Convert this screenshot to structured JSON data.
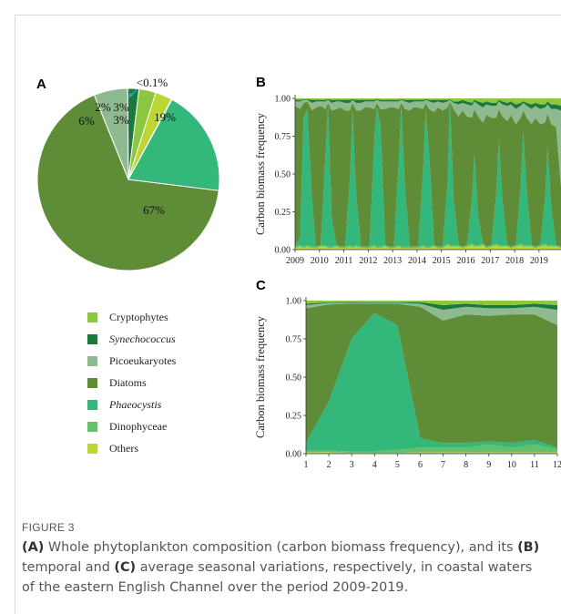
{
  "panels": {
    "a": "A",
    "b": "B",
    "c": "C"
  },
  "colors": {
    "Cryptophytes": "#8dc63f",
    "Synechococcus": "#1a7a3c",
    "Picoeukaryotes": "#8fb98e",
    "Diatoms": "#5f8c37",
    "Phaeocystis": "#33b77a",
    "Dinophyceae": "#64c06a",
    "Others": "#bcd633"
  },
  "legend": [
    {
      "name": "Cryptophytes",
      "italic": false
    },
    {
      "name": "Synechococcus",
      "italic": true
    },
    {
      "name": "Picoeukaryotes",
      "italic": false
    },
    {
      "name": "Diatoms",
      "italic": false
    },
    {
      "name": "Phaeocystis",
      "italic": true
    },
    {
      "name": "Dinophyceae",
      "italic": false
    },
    {
      "name": "Others",
      "italic": false
    }
  ],
  "chart_data": [
    {
      "panel": "A",
      "type": "pie",
      "slices": [
        {
          "name": "Diatoms",
          "value": 67,
          "label": "67%"
        },
        {
          "name": "Picoeukaryotes",
          "value": 6,
          "label": "6%"
        },
        {
          "name": "Synechococcus",
          "value": 2,
          "label": "2%"
        },
        {
          "name": "Cryptophytes",
          "value": 3,
          "label": "3%"
        },
        {
          "name": "Others",
          "value": 3,
          "label": "3%"
        },
        {
          "name": "Dinophyceae",
          "value": 0.1,
          "label": "<0.1%"
        },
        {
          "name": "Phaeocystis",
          "value": 19,
          "label": "19%"
        }
      ]
    },
    {
      "panel": "B",
      "type": "area",
      "ylabel": "Carbon biomass frequency",
      "xlabel": "",
      "ylim": [
        0,
        1
      ],
      "yticks": [
        "0.00",
        "0.25",
        "0.50",
        "0.75",
        "1.00"
      ],
      "xticks": [
        "2009",
        "2010",
        "2011",
        "2012",
        "2013",
        "2014",
        "2015",
        "2016",
        "2017",
        "2018",
        "2019"
      ],
      "x": [
        2009,
        2009.2,
        2009.35,
        2009.5,
        2009.7,
        2009.85,
        2010.05,
        2010.25,
        2010.35,
        2010.5,
        2010.7,
        2010.85,
        2011.05,
        2011.25,
        2011.35,
        2011.5,
        2011.7,
        2011.85,
        2012.05,
        2012.25,
        2012.35,
        2012.5,
        2012.7,
        2012.85,
        2013.05,
        2013.25,
        2013.35,
        2013.5,
        2013.7,
        2013.85,
        2014.05,
        2014.25,
        2014.35,
        2014.5,
        2014.7,
        2014.85,
        2015.05,
        2015.25,
        2015.35,
        2015.5,
        2015.7,
        2015.85,
        2016.05,
        2016.25,
        2016.35,
        2016.5,
        2016.7,
        2016.85,
        2017.05,
        2017.25,
        2017.35,
        2017.5,
        2017.7,
        2017.85,
        2018.05,
        2018.25,
        2018.35,
        2018.5,
        2018.7,
        2018.85,
        2019.05,
        2019.25,
        2019.35,
        2019.5,
        2019.7,
        2019.9
      ],
      "series": [
        {
          "name": "Others",
          "values": [
            0.01,
            0.02,
            0.01,
            0.02,
            0.01,
            0.01,
            0.02,
            0.02,
            0.01,
            0.01,
            0.02,
            0.01,
            0.01,
            0.02,
            0.01,
            0.02,
            0.01,
            0.01,
            0.01,
            0.02,
            0.01,
            0.01,
            0.02,
            0.01,
            0.01,
            0.02,
            0.01,
            0.01,
            0.01,
            0.01,
            0.01,
            0.02,
            0.01,
            0.01,
            0.02,
            0.01,
            0.01,
            0.03,
            0.02,
            0.02,
            0.02,
            0.01,
            0.02,
            0.03,
            0.02,
            0.02,
            0.03,
            0.01,
            0.02,
            0.03,
            0.02,
            0.02,
            0.02,
            0.01,
            0.02,
            0.03,
            0.02,
            0.02,
            0.02,
            0.01,
            0.02,
            0.03,
            0.02,
            0.02,
            0.02,
            0.01
          ]
        },
        {
          "name": "Dinophyceae",
          "values": [
            0.01,
            0.01,
            0.01,
            0.01,
            0.01,
            0.01,
            0.01,
            0.01,
            0.01,
            0.01,
            0.01,
            0.01,
            0.01,
            0.01,
            0.01,
            0.01,
            0.01,
            0.01,
            0.01,
            0.01,
            0.01,
            0.01,
            0.01,
            0.01,
            0.01,
            0.01,
            0.01,
            0.01,
            0.01,
            0.01,
            0.01,
            0.01,
            0.01,
            0.01,
            0.01,
            0.01,
            0.01,
            0.01,
            0.01,
            0.01,
            0.01,
            0.01,
            0.01,
            0.01,
            0.01,
            0.01,
            0.01,
            0.01,
            0.01,
            0.01,
            0.01,
            0.01,
            0.01,
            0.01,
            0.01,
            0.01,
            0.01,
            0.01,
            0.01,
            0.01,
            0.01,
            0.01,
            0.01,
            0.01,
            0.01,
            0.01
          ]
        },
        {
          "name": "Phaeocystis",
          "values": [
            0.0,
            0.05,
            0.85,
            0.9,
            0.3,
            0.0,
            0.0,
            0.6,
            0.93,
            0.2,
            0.0,
            0.0,
            0.0,
            0.45,
            0.9,
            0.35,
            0.0,
            0.0,
            0.0,
            0.7,
            0.92,
            0.8,
            0.0,
            0.0,
            0.0,
            0.55,
            0.93,
            0.4,
            0.0,
            0.0,
            0.0,
            0.5,
            0.9,
            0.6,
            0.0,
            0.0,
            0.0,
            0.4,
            0.95,
            0.3,
            0.0,
            0.0,
            0.0,
            0.3,
            0.6,
            0.2,
            0.0,
            0.0,
            0.0,
            0.35,
            0.7,
            0.3,
            0.0,
            0.0,
            0.0,
            0.4,
            0.75,
            0.35,
            0.0,
            0.0,
            0.0,
            0.3,
            0.65,
            0.25,
            0.0,
            0.0
          ]
        },
        {
          "name": "Diatoms",
          "values": [
            0.93,
            0.85,
            0.1,
            0.05,
            0.6,
            0.92,
            0.92,
            0.3,
            0.02,
            0.7,
            0.9,
            0.92,
            0.9,
            0.45,
            0.05,
            0.55,
            0.9,
            0.92,
            0.92,
            0.2,
            0.03,
            0.1,
            0.9,
            0.92,
            0.92,
            0.35,
            0.02,
            0.5,
            0.9,
            0.92,
            0.92,
            0.4,
            0.05,
            0.3,
            0.88,
            0.92,
            0.9,
            0.5,
            0.0,
            0.6,
            0.85,
            0.9,
            0.85,
            0.55,
            0.3,
            0.65,
            0.8,
            0.88,
            0.85,
            0.5,
            0.2,
            0.55,
            0.82,
            0.88,
            0.8,
            0.45,
            0.15,
            0.5,
            0.8,
            0.85,
            0.8,
            0.5,
            0.22,
            0.55,
            0.78,
            0.4
          ]
        },
        {
          "name": "Picoeukaryotes",
          "values": [
            0.03,
            0.05,
            0.02,
            0.01,
            0.05,
            0.04,
            0.03,
            0.05,
            0.02,
            0.05,
            0.05,
            0.04,
            0.05,
            0.05,
            0.02,
            0.05,
            0.05,
            0.04,
            0.04,
            0.05,
            0.02,
            0.05,
            0.05,
            0.04,
            0.04,
            0.05,
            0.02,
            0.05,
            0.05,
            0.04,
            0.04,
            0.05,
            0.02,
            0.05,
            0.06,
            0.04,
            0.05,
            0.04,
            0.01,
            0.04,
            0.08,
            0.05,
            0.08,
            0.08,
            0.05,
            0.08,
            0.1,
            0.07,
            0.08,
            0.08,
            0.05,
            0.08,
            0.1,
            0.07,
            0.1,
            0.08,
            0.05,
            0.08,
            0.1,
            0.08,
            0.1,
            0.1,
            0.06,
            0.1,
            0.12,
            0.5
          ]
        },
        {
          "name": "Synechococcus",
          "values": [
            0.01,
            0.01,
            0.005,
            0.005,
            0.02,
            0.01,
            0.01,
            0.01,
            0.005,
            0.02,
            0.01,
            0.01,
            0.02,
            0.02,
            0.005,
            0.02,
            0.02,
            0.01,
            0.01,
            0.01,
            0.005,
            0.01,
            0.01,
            0.01,
            0.01,
            0.01,
            0.005,
            0.01,
            0.02,
            0.01,
            0.01,
            0.01,
            0.005,
            0.01,
            0.02,
            0.01,
            0.02,
            0.01,
            0.005,
            0.01,
            0.02,
            0.02,
            0.02,
            0.02,
            0.01,
            0.02,
            0.03,
            0.02,
            0.02,
            0.02,
            0.01,
            0.02,
            0.02,
            0.02,
            0.03,
            0.02,
            0.01,
            0.02,
            0.03,
            0.02,
            0.03,
            0.02,
            0.02,
            0.03,
            0.03,
            0.03
          ]
        },
        {
          "name": "Cryptophytes",
          "values": [
            0.01,
            0.01,
            0.005,
            0.005,
            0.01,
            0.01,
            0.01,
            0.01,
            0.005,
            0.01,
            0.01,
            0.01,
            0.01,
            0.01,
            0.005,
            0.01,
            0.01,
            0.01,
            0.01,
            0.01,
            0.005,
            0.01,
            0.01,
            0.01,
            0.01,
            0.01,
            0.005,
            0.01,
            0.01,
            0.01,
            0.01,
            0.01,
            0.005,
            0.01,
            0.01,
            0.01,
            0.01,
            0.01,
            0.005,
            0.02,
            0.02,
            0.01,
            0.02,
            0.03,
            0.01,
            0.02,
            0.03,
            0.02,
            0.03,
            0.03,
            0.01,
            0.02,
            0.03,
            0.02,
            0.04,
            0.03,
            0.02,
            0.03,
            0.04,
            0.03,
            0.04,
            0.04,
            0.02,
            0.04,
            0.04,
            0.05
          ]
        }
      ]
    },
    {
      "panel": "C",
      "type": "area",
      "ylabel": "Carbon biomass frequency",
      "xlabel": "",
      "ylim": [
        0,
        1
      ],
      "yticks": [
        "0.00",
        "0.25",
        "0.50",
        "0.75",
        "1.00"
      ],
      "xticks": [
        "1",
        "2",
        "3",
        "4",
        "5",
        "6",
        "7",
        "8",
        "9",
        "10",
        "11",
        "12"
      ],
      "x": [
        1,
        2,
        3,
        4,
        5,
        6,
        7,
        8,
        9,
        10,
        11,
        12
      ],
      "series": [
        {
          "name": "Others",
          "values": [
            0.01,
            0.01,
            0.005,
            0.005,
            0.005,
            0.01,
            0.01,
            0.01,
            0.01,
            0.01,
            0.01,
            0.01
          ]
        },
        {
          "name": "Dinophyceae",
          "values": [
            0.01,
            0.01,
            0.01,
            0.01,
            0.02,
            0.03,
            0.03,
            0.03,
            0.05,
            0.03,
            0.05,
            0.02
          ]
        },
        {
          "name": "Phaeocystis",
          "values": [
            0.05,
            0.32,
            0.74,
            0.9,
            0.81,
            0.06,
            0.03,
            0.03,
            0.02,
            0.03,
            0.03,
            0.01
          ]
        },
        {
          "name": "Diatoms",
          "values": [
            0.88,
            0.63,
            0.23,
            0.06,
            0.14,
            0.86,
            0.8,
            0.84,
            0.82,
            0.84,
            0.82,
            0.8
          ]
        },
        {
          "name": "Picoeukaryotes",
          "values": [
            0.02,
            0.01,
            0.005,
            0.005,
            0.005,
            0.02,
            0.07,
            0.05,
            0.05,
            0.04,
            0.05,
            0.1
          ]
        },
        {
          "name": "Synechococcus",
          "values": [
            0.01,
            0.005,
            0.005,
            0.005,
            0.005,
            0.01,
            0.03,
            0.02,
            0.02,
            0.02,
            0.02,
            0.03
          ]
        },
        {
          "name": "Cryptophytes",
          "values": [
            0.02,
            0.01,
            0.01,
            0.01,
            0.01,
            0.01,
            0.03,
            0.02,
            0.03,
            0.03,
            0.02,
            0.03
          ]
        }
      ]
    }
  ],
  "figure": {
    "label": "FIGURE 3",
    "caption": [
      {
        "text": "(A)",
        "bold": true
      },
      {
        "text": " Whole phytoplankton composition (carbon biomass frequency), and its ",
        "bold": false
      },
      {
        "text": "(B)",
        "bold": true
      },
      {
        "text": " temporal and ",
        "bold": false
      },
      {
        "text": "(C)",
        "bold": true
      },
      {
        "text": " average seasonal variations, respectively, in coastal waters of the eastern English Channel over the period 2009-2019.",
        "bold": false
      }
    ]
  }
}
